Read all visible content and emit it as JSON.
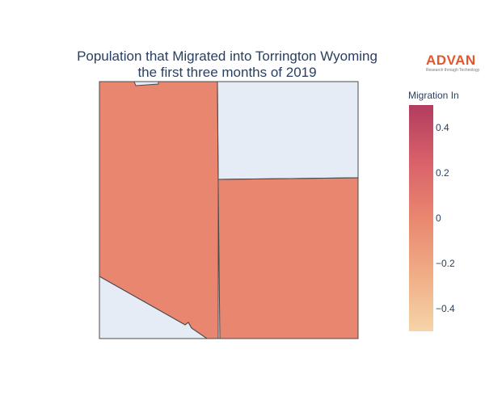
{
  "title": {
    "line1": "Population that Migrated into Torrington Wyoming",
    "line2": "the first three months of 2019"
  },
  "logo": {
    "word": "ADVAN",
    "tagline": "Research through Technology"
  },
  "colorbar": {
    "title": "Migration In",
    "ticks": [
      "0.4",
      "0.2",
      "0",
      "−0.2",
      "−0.4"
    ],
    "range": [
      -0.5,
      0.5
    ],
    "colors": [
      "#b33c5f",
      "#d8616a",
      "#e9876f",
      "#f0ad85",
      "#f6d4a8"
    ]
  },
  "map": {
    "background_fill": "#e5ecf6",
    "region_fill": "#e9866f",
    "border_color": "#444444"
  }
}
